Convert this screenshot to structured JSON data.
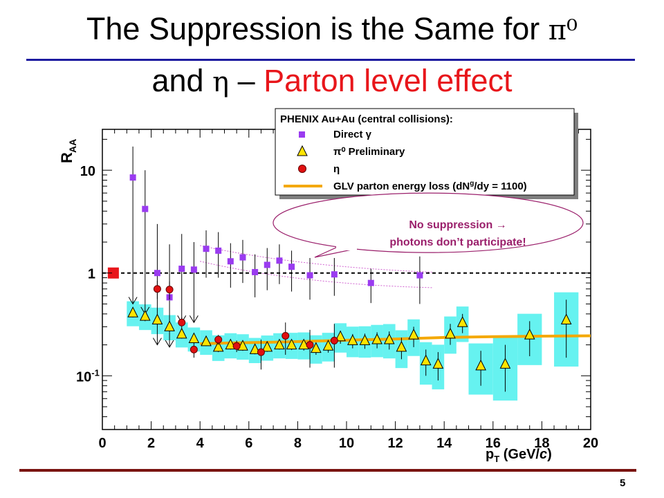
{
  "slide": {
    "title_line1_text": "The Suppression is the Same for ",
    "title_line1_symbol": "π⁰",
    "title_line2_a": "and ",
    "title_line2_eta": "η",
    "title_line2_dash": " – ",
    "title_line2_red": "Parton level effect",
    "page_number": "5",
    "title_rule_color": "#1d1aa0",
    "accent_red": "#e8161b"
  },
  "chart_data": {
    "type": "scatter",
    "xlabel_main": "p",
    "xlabel_sub": "T",
    "xlabel_unit": " (GeV/",
    "xlabel_c": "c",
    "xlabel_close": ")",
    "ylabel_main": "R",
    "ylabel_sub": "AA",
    "xlim": [
      0,
      20
    ],
    "ylim": [
      0.03,
      25
    ],
    "y_scale": "log",
    "xticks": [
      "0",
      "2",
      "4",
      "6",
      "8",
      "10",
      "12",
      "14",
      "16",
      "18",
      "20"
    ],
    "yticks": [
      {
        "value": 10,
        "label": "10"
      },
      {
        "value": 1,
        "label": "1"
      },
      {
        "value": 0.1,
        "base": "10",
        "exp": "-1"
      }
    ],
    "reference_line": {
      "y": 1,
      "style": "dashed"
    },
    "normalization_marker": {
      "x": 0.45,
      "y": 1.0,
      "color": "#e8161b"
    },
    "legend": {
      "title": "PHENIX Au+Au (central collisions):",
      "placement": "top-right",
      "entries": [
        {
          "label": "Direct γ",
          "marker": "square",
          "color": "#9a3bf0"
        },
        {
          "label": "π⁰ Preliminary",
          "marker": "triangle",
          "color": "#ffe400"
        },
        {
          "label": "η",
          "marker": "circle",
          "color": "#e01010"
        },
        {
          "label_a": "GLV parton energy loss (dN",
          "label_sup": "g",
          "label_b": "/dy = 1100)",
          "marker": "line",
          "color": "#f4a800"
        }
      ]
    },
    "callout": {
      "line1": "No suppression  →",
      "line2": "photons don’t participate!",
      "color": "#9a1f6b"
    },
    "series": [
      {
        "name": "Direct γ",
        "color": "#9a3bf0",
        "points": [
          {
            "x": 1.25,
            "y": 8.5,
            "lo": 0.5,
            "hi": 17,
            "limit": true
          },
          {
            "x": 1.75,
            "y": 4.2,
            "lo": 0.4,
            "hi": 10,
            "limit": true
          },
          {
            "x": 2.25,
            "y": 1.0,
            "lo": 0.2,
            "hi": 3.0,
            "limit": true
          },
          {
            "x": 2.75,
            "y": 0.58,
            "lo": 0.19,
            "hi": 1.9,
            "limit": true
          },
          {
            "x": 3.25,
            "y": 1.1,
            "lo": 0.33,
            "hi": 2.4,
            "limit": true
          },
          {
            "x": 3.75,
            "y": 1.08,
            "lo": 0.33,
            "hi": 2.0,
            "limit": true
          },
          {
            "x": 4.25,
            "y": 1.72,
            "lo": 0.9,
            "hi": 2.6
          },
          {
            "x": 4.75,
            "y": 1.65,
            "lo": 0.9,
            "hi": 2.5
          },
          {
            "x": 5.25,
            "y": 1.3,
            "lo": 0.72,
            "hi": 1.95
          },
          {
            "x": 5.75,
            "y": 1.42,
            "lo": 0.8,
            "hi": 2.1
          },
          {
            "x": 6.25,
            "y": 1.02,
            "lo": 0.58,
            "hi": 1.52
          },
          {
            "x": 6.75,
            "y": 1.2,
            "lo": 0.68,
            "hi": 1.75
          },
          {
            "x": 7.25,
            "y": 1.32,
            "lo": 0.78,
            "hi": 1.9
          },
          {
            "x": 7.75,
            "y": 1.15,
            "lo": 0.66,
            "hi": 1.65
          },
          {
            "x": 8.5,
            "y": 0.95,
            "lo": 0.55,
            "hi": 1.4
          },
          {
            "x": 9.5,
            "y": 0.97,
            "lo": 0.6,
            "hi": 1.4
          },
          {
            "x": 11.0,
            "y": 0.8,
            "lo": 0.51,
            "hi": 1.1
          },
          {
            "x": 13.0,
            "y": 0.95,
            "lo": 0.5,
            "hi": 1.45
          }
        ]
      },
      {
        "name": "π⁰ Preliminary",
        "color": "#ffe400",
        "points": [
          {
            "x": 1.25,
            "y": 0.41,
            "lo": 0.37,
            "hi": 0.45
          },
          {
            "x": 1.75,
            "y": 0.38,
            "lo": 0.34,
            "hi": 0.42
          },
          {
            "x": 2.25,
            "y": 0.35,
            "lo": 0.31,
            "hi": 0.39
          },
          {
            "x": 2.75,
            "y": 0.3,
            "lo": 0.27,
            "hi": 0.33
          },
          {
            "x": 3.25,
            "y": 0.255,
            "lo": 0.23,
            "hi": 0.28
          },
          {
            "x": 3.75,
            "y": 0.23,
            "lo": 0.21,
            "hi": 0.25
          },
          {
            "x": 4.25,
            "y": 0.215,
            "lo": 0.195,
            "hi": 0.235
          },
          {
            "x": 4.75,
            "y": 0.19,
            "lo": 0.17,
            "hi": 0.21
          },
          {
            "x": 5.25,
            "y": 0.2,
            "lo": 0.18,
            "hi": 0.22
          },
          {
            "x": 5.75,
            "y": 0.195,
            "lo": 0.175,
            "hi": 0.215
          },
          {
            "x": 6.25,
            "y": 0.18,
            "lo": 0.162,
            "hi": 0.198
          },
          {
            "x": 6.75,
            "y": 0.19,
            "lo": 0.171,
            "hi": 0.209
          },
          {
            "x": 7.25,
            "y": 0.2,
            "lo": 0.18,
            "hi": 0.22
          },
          {
            "x": 7.75,
            "y": 0.2,
            "lo": 0.178,
            "hi": 0.222
          },
          {
            "x": 8.25,
            "y": 0.2,
            "lo": 0.176,
            "hi": 0.224
          },
          {
            "x": 8.75,
            "y": 0.185,
            "lo": 0.16,
            "hi": 0.21
          },
          {
            "x": 9.25,
            "y": 0.195,
            "lo": 0.168,
            "hi": 0.222
          },
          {
            "x": 9.75,
            "y": 0.24,
            "lo": 0.205,
            "hi": 0.275
          },
          {
            "x": 10.25,
            "y": 0.22,
            "lo": 0.185,
            "hi": 0.255
          },
          {
            "x": 10.75,
            "y": 0.22,
            "lo": 0.183,
            "hi": 0.257
          },
          {
            "x": 11.25,
            "y": 0.225,
            "lo": 0.185,
            "hi": 0.265
          },
          {
            "x": 11.75,
            "y": 0.225,
            "lo": 0.18,
            "hi": 0.27
          },
          {
            "x": 12.25,
            "y": 0.19,
            "lo": 0.145,
            "hi": 0.235
          },
          {
            "x": 12.75,
            "y": 0.25,
            "lo": 0.19,
            "hi": 0.3
          },
          {
            "x": 13.25,
            "y": 0.14,
            "lo": 0.1,
            "hi": 0.18
          },
          {
            "x": 13.75,
            "y": 0.13,
            "lo": 0.09,
            "hi": 0.17
          },
          {
            "x": 14.25,
            "y": 0.255,
            "lo": 0.2,
            "hi": 0.32
          },
          {
            "x": 14.75,
            "y": 0.33,
            "lo": 0.26,
            "hi": 0.4
          },
          {
            "x": 15.5,
            "y": 0.125,
            "lo": 0.08,
            "hi": 0.175
          },
          {
            "x": 16.5,
            "y": 0.13,
            "lo": 0.07,
            "hi": 0.2
          },
          {
            "x": 17.5,
            "y": 0.25,
            "lo": 0.155,
            "hi": 0.34
          },
          {
            "x": 19.0,
            "y": 0.35,
            "lo": 0.15,
            "hi": 0.55
          }
        ]
      },
      {
        "name": "η",
        "color": "#e01010",
        "points": [
          {
            "x": 2.25,
            "y": 0.7,
            "lo": 0.56,
            "hi": 0.84
          },
          {
            "x": 2.75,
            "y": 0.69,
            "lo": 0.55,
            "hi": 0.83
          },
          {
            "x": 3.25,
            "y": 0.33,
            "lo": 0.29,
            "hi": 0.37
          },
          {
            "x": 3.75,
            "y": 0.18,
            "lo": 0.15,
            "hi": 0.21
          },
          {
            "x": 4.75,
            "y": 0.225,
            "lo": 0.2,
            "hi": 0.25
          },
          {
            "x": 5.5,
            "y": 0.195,
            "lo": 0.17,
            "hi": 0.22
          },
          {
            "x": 6.5,
            "y": 0.17,
            "lo": 0.115,
            "hi": 0.225
          },
          {
            "x": 7.5,
            "y": 0.245,
            "lo": 0.16,
            "hi": 0.33
          },
          {
            "x": 8.5,
            "y": 0.2,
            "lo": 0.12,
            "hi": 0.28
          },
          {
            "x": 9.5,
            "y": 0.22,
            "lo": 0.12,
            "hi": 0.32
          }
        ]
      },
      {
        "name": "GLV parton energy loss (dNg/dy = 1100)",
        "color": "#f4a800",
        "type": "line",
        "points": [
          {
            "x": 4.0,
            "y": 0.205
          },
          {
            "x": 5.0,
            "y": 0.208
          },
          {
            "x": 6.0,
            "y": 0.21
          },
          {
            "x": 8.0,
            "y": 0.215
          },
          {
            "x": 10.0,
            "y": 0.222
          },
          {
            "x": 12.0,
            "y": 0.228
          },
          {
            "x": 14.0,
            "y": 0.236
          },
          {
            "x": 16.0,
            "y": 0.24
          },
          {
            "x": 18.0,
            "y": 0.243
          },
          {
            "x": 20.0,
            "y": 0.245
          }
        ]
      }
    ]
  }
}
